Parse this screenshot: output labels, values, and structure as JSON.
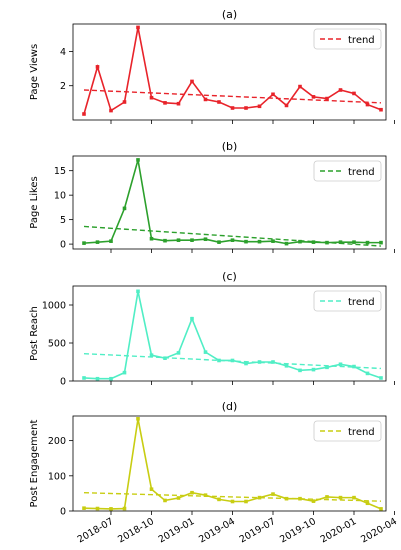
{
  "chart_data": [
    {
      "type": "line",
      "title": "(a)",
      "ylabel": "Page Views",
      "color": "#e8232a",
      "ylim": [
        0,
        5.6
      ],
      "yticks": [
        2,
        4
      ],
      "legend": {
        "label": "trend",
        "position": "top-right"
      },
      "trend": [
        1.75,
        1.0
      ],
      "values": [
        0.35,
        3.1,
        0.55,
        1.05,
        5.4,
        1.3,
        1.0,
        0.95,
        2.25,
        1.2,
        1.05,
        0.7,
        0.7,
        0.8,
        1.5,
        0.85,
        1.95,
        1.35,
        1.25,
        1.75,
        1.55,
        0.9,
        0.6
      ]
    },
    {
      "type": "line",
      "title": "(b)",
      "ylabel": "Page Likes",
      "color": "#2ca02c",
      "ylim": [
        -1,
        18
      ],
      "yticks": [
        0,
        5,
        10,
        15
      ],
      "legend": {
        "label": "trend",
        "position": "top-right"
      },
      "trend": [
        3.6,
        -0.4
      ],
      "values": [
        0.2,
        0.4,
        0.6,
        7.3,
        17.2,
        1.1,
        0.7,
        0.8,
        0.8,
        1.0,
        0.4,
        0.8,
        0.5,
        0.5,
        0.6,
        0.1,
        0.5,
        0.4,
        0.3,
        0.4,
        0.4,
        0.3,
        0.3
      ]
    },
    {
      "type": "line",
      "title": "(c)",
      "ylabel": "Post Reach",
      "color": "#50eec5",
      "ylim": [
        0,
        1250
      ],
      "yticks": [
        0,
        500,
        1000
      ],
      "legend": {
        "label": "trend",
        "position": "top-right"
      },
      "trend": [
        360,
        165
      ],
      "values": [
        40,
        30,
        30,
        110,
        1180,
        340,
        300,
        370,
        820,
        380,
        270,
        270,
        230,
        250,
        250,
        200,
        140,
        150,
        180,
        220,
        190,
        100,
        40
      ]
    },
    {
      "type": "line",
      "title": "(d)",
      "ylabel": "Post Engagement",
      "color": "#c8cd12",
      "ylim": [
        0,
        270
      ],
      "yticks": [
        0,
        100,
        200
      ],
      "legend": {
        "label": "trend",
        "position": "top-right"
      },
      "trend": [
        52,
        28
      ],
      "values": [
        8,
        7,
        6,
        7,
        262,
        62,
        30,
        37,
        52,
        45,
        33,
        27,
        27,
        38,
        48,
        35,
        35,
        28,
        40,
        38,
        38,
        22,
        6
      ]
    }
  ],
  "x_tick_labels": [
    "2018-07",
    "2018-10",
    "2019-01",
    "2019-04",
    "2019-07",
    "2019-10",
    "2020-01",
    "2020-04"
  ]
}
